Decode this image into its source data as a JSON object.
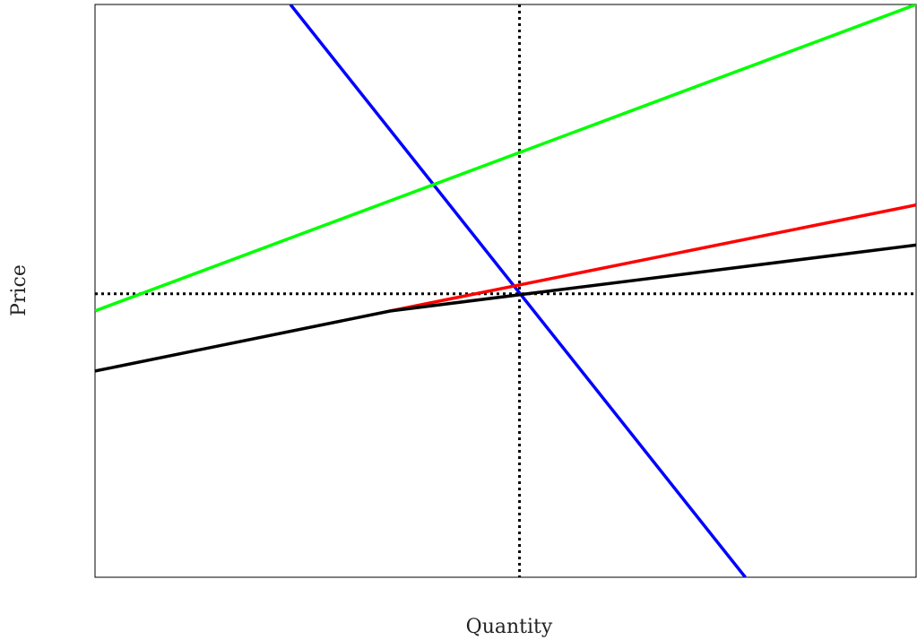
{
  "chart_data": {
    "type": "line",
    "title": "",
    "xlabel": "Quantity",
    "ylabel": "Price",
    "xlim": [
      0,
      10
    ],
    "ylim": [
      0,
      10
    ],
    "grid": false,
    "legend": "none",
    "series": [
      {
        "color": "#0000ff",
        "style": "solid",
        "x": [
          2.38,
          7.92
        ],
        "y": [
          10.0,
          0.0
        ]
      },
      {
        "color": "#00ff00",
        "style": "solid",
        "x": [
          0.0,
          10.0
        ],
        "y": [
          4.65,
          10.0
        ]
      },
      {
        "color": "#ff0000",
        "style": "solid",
        "x": [
          3.6,
          10.0
        ],
        "y": [
          4.65,
          6.5
        ]
      },
      {
        "color": "#000000",
        "style": "solid",
        "x": [
          0.0,
          3.6,
          10.0
        ],
        "y": [
          3.6,
          4.65,
          5.8
        ]
      }
    ],
    "reference_lines": [
      {
        "orientation": "vertical",
        "x": 5.17,
        "color": "#000000",
        "style": "dotted"
      },
      {
        "orientation": "horizontal",
        "y": 4.95,
        "color": "#000000",
        "style": "dotted"
      }
    ]
  }
}
